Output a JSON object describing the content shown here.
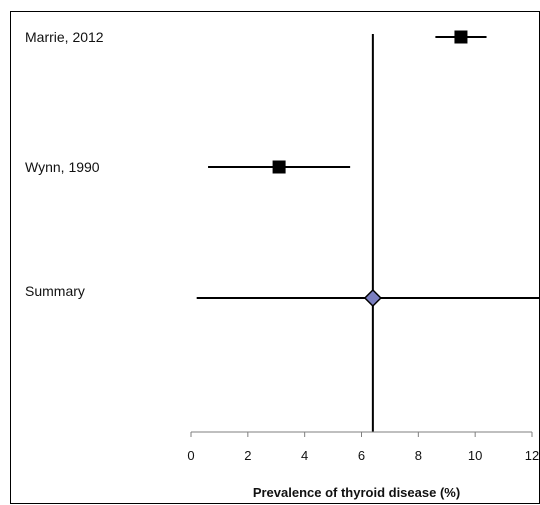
{
  "chart_data": {
    "type": "forest",
    "title": "",
    "xlabel": "Prevalence of thyroid disease (%)",
    "ylabel": "",
    "xlim": [
      0,
      12
    ],
    "xticks": [
      0,
      2,
      4,
      6,
      8,
      10,
      12
    ],
    "xtick_labels": [
      "0",
      "2",
      "4",
      "6",
      "8",
      "10",
      "12"
    ],
    "reference_line": 6.4,
    "grid": false,
    "legend": "none",
    "studies": [
      {
        "label": "Marrie, 2012",
        "estimate": 9.5,
        "lower": 8.6,
        "upper": 10.4,
        "marker": "square"
      },
      {
        "label": "Wynn, 1990",
        "estimate": 3.1,
        "lower": 0.6,
        "upper": 5.6,
        "marker": "square"
      }
    ],
    "summary": {
      "label": "Summary",
      "estimate": 6.4,
      "lower": 0.2,
      "upper": 12.4,
      "marker": "diamond"
    },
    "colors": {
      "marker": "#000000",
      "summary_fill": "#7b7fc0",
      "line": "#000000"
    }
  }
}
